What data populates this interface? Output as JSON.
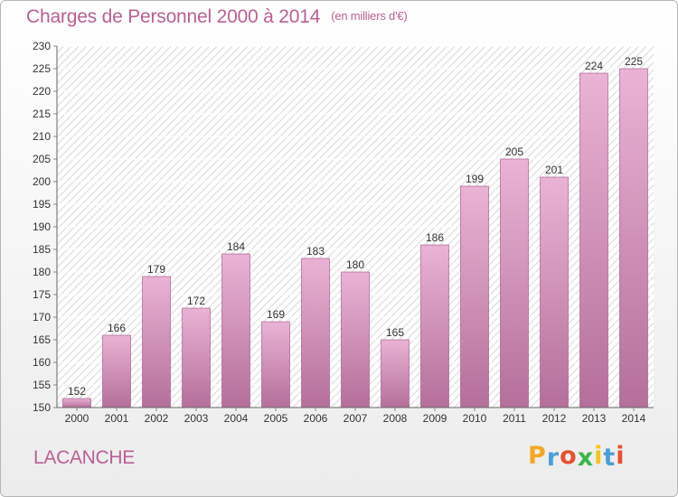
{
  "title": "Charges de Personnel 2000 à 2014",
  "subtitle": "(en milliers d'€)",
  "commune": "LACANCHE",
  "logo": {
    "letters": [
      "P",
      "r",
      "o",
      "x",
      "i",
      "t",
      "i"
    ],
    "colors": [
      "#f5a623",
      "#4a9fd8",
      "#e8502e",
      "#3bb54a",
      "#f5c518",
      "#4a9fd8",
      "#e8502e"
    ]
  },
  "colors": {
    "bar_light": "#eab3d5",
    "bar_dark": "#b46f9a",
    "bar_edge": "#9c5283",
    "title": "#ba5f94"
  },
  "chart_data": {
    "type": "bar",
    "categories": [
      "2000",
      "2001",
      "2002",
      "2003",
      "2004",
      "2005",
      "2006",
      "2007",
      "2008",
      "2009",
      "2010",
      "2011",
      "2012",
      "2013",
      "2014"
    ],
    "values": [
      152,
      166,
      179,
      172,
      184,
      169,
      183,
      180,
      165,
      186,
      199,
      205,
      201,
      224,
      225
    ],
    "ylim": [
      150,
      230
    ],
    "yticks": [
      150,
      155,
      160,
      165,
      170,
      175,
      180,
      185,
      190,
      195,
      200,
      205,
      210,
      215,
      220,
      225,
      230
    ],
    "grid": true,
    "xlabel": "",
    "ylabel": ""
  }
}
